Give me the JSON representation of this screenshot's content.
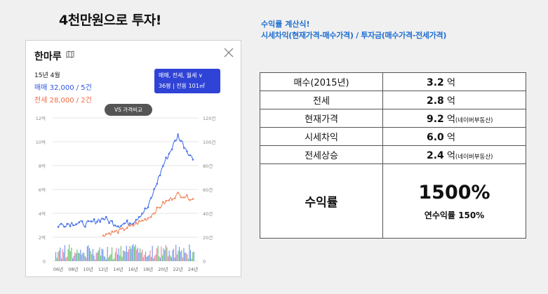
{
  "heading": "4천만원으로 투자!",
  "panel": {
    "title": "한마루",
    "date": "15년 4월",
    "sale": "매매 32,000 / 5건",
    "jeonse": "전세 28,000 / 2건",
    "filter_line1": "매매, 전세, 월세 ∨",
    "filter_line2": "36평 | 전용 101㎡",
    "vs_button": "VS 가격비교",
    "colors": {
      "sale": "#4a73e8",
      "jeonse": "#f28a62",
      "filter": "#2f43d6",
      "volume_green": "#3cb043",
      "volume_pink": "#e85a8a"
    }
  },
  "chart_data": {
    "type": "line",
    "x": [
      "06년",
      "08년",
      "10년",
      "12년",
      "14년",
      "16년",
      "18년",
      "20년",
      "22년",
      "24년"
    ],
    "x_ticks": [
      "06년",
      "08년",
      "10년",
      "12년",
      "14년",
      "16년",
      "18년",
      "20년",
      "22년",
      "24년"
    ],
    "y_left_ticks": [
      "12억",
      "10억",
      "8억",
      "6억",
      "4억",
      "2억",
      "0"
    ],
    "y_right_ticks": [
      "120건",
      "100건",
      "80건",
      "60건",
      "40건",
      "20건",
      "0"
    ],
    "ylim": [
      0,
      12
    ],
    "series": [
      {
        "name": "매매",
        "values": [
          3.0,
          3.2,
          3.1,
          3.6,
          3.0,
          3.3,
          4.5,
          8.0,
          10.5,
          8.5
        ]
      },
      {
        "name": "전세",
        "values": [
          null,
          null,
          null,
          2.2,
          2.5,
          3.0,
          3.6,
          4.8,
          5.6,
          5.2
        ]
      }
    ]
  },
  "formula": {
    "title": "수익률 계산식!",
    "body": "시세차익(현재가격-매수가격) / 투자금(매수가격-전세가격)"
  },
  "rows": [
    {
      "label": "매수(2015년)",
      "value": "3.2",
      "unit": "억",
      "note": ""
    },
    {
      "label": "전세",
      "value": "2.8",
      "unit": "억",
      "note": ""
    },
    {
      "label": "현재가격",
      "value": "9.2",
      "unit": "억",
      "note": "(네이버부동산)"
    },
    {
      "label": "시세차익",
      "value": "6.0",
      "unit": "억",
      "note": ""
    },
    {
      "label": "전세상승",
      "value": "2.4",
      "unit": "억",
      "note": "(네이버부동산)"
    }
  ],
  "result": {
    "label": "수익률",
    "value": "1500%",
    "annual": "연수익률 150%"
  }
}
